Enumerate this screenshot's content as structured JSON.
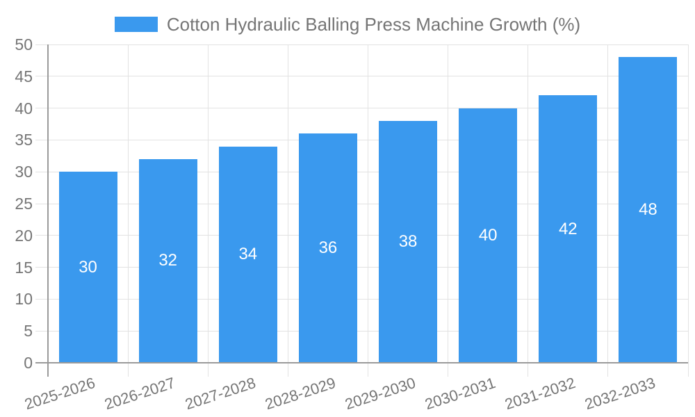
{
  "legend": {
    "label": "Cotton Hydraulic Balling Press Machine Growth (%)",
    "swatch_color": "#3A99EE"
  },
  "chart_data": {
    "type": "bar",
    "title": "Cotton Hydraulic Balling Press Machine Growth (%)",
    "series_name": "Cotton Hydraulic Balling Press Machine Growth (%)",
    "categories": [
      "2025-2026",
      "2026-2027",
      "2027-2028",
      "2028-2029",
      "2029-2030",
      "2030-2031",
      "2031-2032",
      "2032-2033"
    ],
    "values": [
      30,
      32,
      34,
      36,
      38,
      40,
      42,
      48
    ],
    "xlabel": "",
    "ylabel": "",
    "ylim": [
      0,
      50
    ],
    "yticks": [
      0,
      5,
      10,
      15,
      20,
      25,
      30,
      35,
      40,
      45,
      50
    ],
    "grid": true,
    "legend_position": "top",
    "bar_color": "#3A99EE",
    "value_label_color": "#FFFFFF",
    "grid_color": "#E2E2E2",
    "axis_color": "#9A9A9A",
    "tick_label_color": "#757575",
    "background_color": "#FFFFFF"
  }
}
